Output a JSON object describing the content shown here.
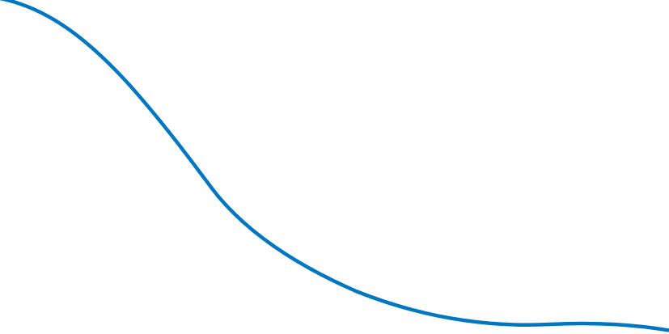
{
  "decoration": {
    "shape": "wave-curve",
    "stroke_color": "#0077c0",
    "background_color": "#ffffff"
  }
}
